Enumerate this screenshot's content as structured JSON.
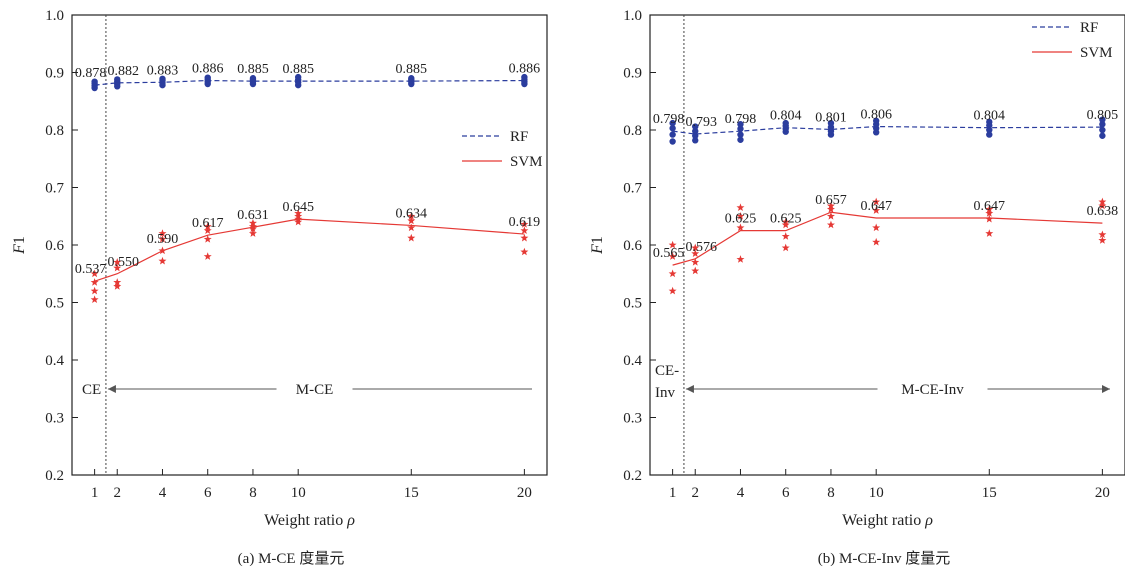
{
  "chart_data": [
    {
      "type": "line",
      "caption": "(a) M-CE 度量元",
      "xlabel": "Weight ratio",
      "xlabel_symbol": "ρ",
      "ylabel": "F1",
      "ylim": [
        0.2,
        1.0
      ],
      "yticks": [
        "0.2",
        "0.3",
        "0.4",
        "0.5",
        "0.6",
        "0.7",
        "0.8",
        "0.9",
        "1.0"
      ],
      "x": [
        1,
        2,
        4,
        6,
        8,
        10,
        15,
        20
      ],
      "xticks": [
        "1",
        "2",
        "4",
        "6",
        "8",
        "10",
        "15",
        "20"
      ],
      "legend_position": "center-right",
      "series": [
        {
          "name": "RF",
          "color": "#2b3d9e",
          "line_style": "dashed",
          "marker": "dot",
          "values": [
            0.878,
            0.882,
            0.883,
            0.886,
            0.885,
            0.885,
            0.885,
            0.886
          ],
          "labels": [
            "0.878",
            "0.882",
            "0.883",
            "0.886",
            "0.885",
            "0.885",
            "0.885",
            "0.886"
          ],
          "scatter": [
            [
              0.873,
              0.877,
              0.881,
              0.884
            ],
            [
              0.876,
              0.88,
              0.884,
              0.888
            ],
            [
              0.878,
              0.882,
              0.886,
              0.889
            ],
            [
              0.88,
              0.884,
              0.888,
              0.891
            ],
            [
              0.88,
              0.884,
              0.887,
              0.89
            ],
            [
              0.878,
              0.883,
              0.887,
              0.892
            ],
            [
              0.88,
              0.884,
              0.887,
              0.89
            ],
            [
              0.88,
              0.884,
              0.888,
              0.892
            ]
          ]
        },
        {
          "name": "SVM",
          "color": "#e53935",
          "line_style": "solid",
          "marker": "star",
          "values": [
            0.537,
            0.55,
            0.59,
            0.617,
            0.631,
            0.645,
            0.634,
            0.619
          ],
          "labels": [
            "0.537",
            "0.550",
            "0.590",
            "0.617",
            "0.631",
            "0.645",
            "0.634",
            "0.619"
          ],
          "scatter": [
            [
              0.505,
              0.52,
              0.535,
              0.55
            ],
            [
              0.528,
              0.535,
              0.56,
              0.57
            ],
            [
              0.572,
              0.59,
              0.61,
              0.62
            ],
            [
              0.58,
              0.61,
              0.625,
              0.632
            ],
            [
              0.62,
              0.628,
              0.632,
              0.638
            ],
            [
              0.64,
              0.645,
              0.65,
              0.655
            ],
            [
              0.612,
              0.63,
              0.642,
              0.65
            ],
            [
              0.588,
              0.612,
              0.625,
              0.636
            ]
          ]
        }
      ],
      "divider_x": 1.5,
      "region_left_label": "CE",
      "region_right_label": "M-CE"
    },
    {
      "type": "line",
      "caption": "(b) M-CE-Inv 度量元",
      "xlabel": "Weight ratio",
      "xlabel_symbol": "ρ",
      "ylabel": "F1",
      "ylim": [
        0.2,
        1.0
      ],
      "yticks": [
        "0.2",
        "0.3",
        "0.4",
        "0.5",
        "0.6",
        "0.7",
        "0.8",
        "0.9",
        "1.0"
      ],
      "x": [
        1,
        2,
        4,
        6,
        8,
        10,
        15,
        20
      ],
      "xticks": [
        "1",
        "2",
        "4",
        "6",
        "8",
        "10",
        "15",
        "20"
      ],
      "legend_position": "top-right",
      "series": [
        {
          "name": "RF",
          "color": "#2b3d9e",
          "line_style": "dashed",
          "marker": "dot",
          "values": [
            0.798,
            0.793,
            0.798,
            0.804,
            0.801,
            0.806,
            0.804,
            0.805
          ],
          "labels": [
            "0.798",
            "0.793",
            "0.798",
            "0.804",
            "0.801",
            "0.806",
            "0.804",
            "0.805"
          ],
          "scatter": [
            [
              0.78,
              0.792,
              0.803,
              0.812
            ],
            [
              0.782,
              0.79,
              0.798,
              0.806
            ],
            [
              0.783,
              0.792,
              0.802,
              0.81
            ],
            [
              0.797,
              0.802,
              0.807,
              0.812
            ],
            [
              0.792,
              0.798,
              0.805,
              0.812
            ],
            [
              0.796,
              0.803,
              0.81,
              0.816
            ],
            [
              0.792,
              0.8,
              0.808,
              0.814
            ],
            [
              0.79,
              0.8,
              0.81,
              0.818
            ]
          ]
        },
        {
          "name": "SVM",
          "color": "#e53935",
          "line_style": "solid",
          "marker": "star",
          "values": [
            0.565,
            0.576,
            0.625,
            0.625,
            0.657,
            0.647,
            0.647,
            0.638
          ],
          "labels": [
            "0.565",
            "0.576",
            "0.625",
            "0.625",
            "0.657",
            "0.647",
            "0.647",
            "0.638"
          ],
          "scatter": [
            [
              0.52,
              0.55,
              0.58,
              0.6
            ],
            [
              0.555,
              0.57,
              0.585,
              0.595
            ],
            [
              0.575,
              0.63,
              0.65,
              0.665
            ],
            [
              0.595,
              0.615,
              0.635,
              0.64
            ],
            [
              0.635,
              0.65,
              0.662,
              0.668
            ],
            [
              0.605,
              0.63,
              0.66,
              0.675
            ],
            [
              0.62,
              0.645,
              0.655,
              0.662
            ],
            [
              0.608,
              0.618,
              0.668,
              0.675
            ]
          ]
        }
      ],
      "divider_x": 1.5,
      "region_left_label": [
        "CE-",
        "Inv"
      ],
      "region_right_label": "M-CE-Inv"
    }
  ]
}
